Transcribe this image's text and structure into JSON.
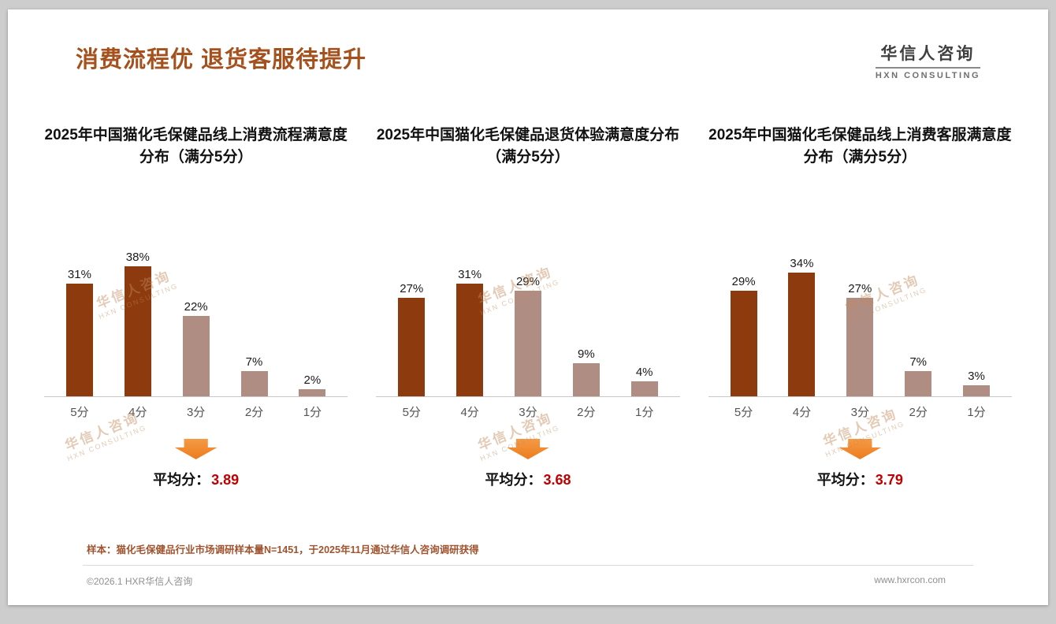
{
  "page": {
    "title": "消费流程优 退货客服待提升",
    "logo": {
      "cn": "华信人咨询",
      "en": "HXN CONSULTING"
    },
    "watermark": {
      "cn": "华信人咨询",
      "en": "HXN CONSULTING"
    },
    "footnote": "样本：猫化毛保健品行业市场调研样本量N=1451，于2025年11月通过华信人咨询调研获得",
    "copyright": "©2026.1 HXR华信人咨询",
    "website": "www.hxrcon.com"
  },
  "colors": {
    "title": "#A4511E",
    "bar_dark": "#8C3A0E",
    "bar_light": "#B08D83",
    "arrow": "#EC7C1F",
    "average_value": "#C00000"
  },
  "chart_data": [
    {
      "type": "bar",
      "title": "2025年中国猫化毛保健品线上消费流程满意度分布（满分5分）",
      "categories": [
        "5分",
        "4分",
        "3分",
        "2分",
        "1分"
      ],
      "values": [
        31,
        38,
        22,
        7,
        2
      ],
      "value_labels": [
        "31%",
        "38%",
        "22%",
        "7%",
        "2%"
      ],
      "bar_colors": [
        "#8C3A0E",
        "#8C3A0E",
        "#B08D83",
        "#B08D83",
        "#B08D83"
      ],
      "ylim": [
        0,
        40
      ],
      "grid": false,
      "legend": false,
      "average_label": "平均分：",
      "average": "3.89"
    },
    {
      "type": "bar",
      "title": "2025年中国猫化毛保健品退货体验满意度分布（满分5分）",
      "categories": [
        "5分",
        "4分",
        "3分",
        "2分",
        "1分"
      ],
      "values": [
        27,
        31,
        29,
        9,
        4
      ],
      "value_labels": [
        "27%",
        "31%",
        "29%",
        "9%",
        "4%"
      ],
      "bar_colors": [
        "#8C3A0E",
        "#8C3A0E",
        "#B08D83",
        "#B08D83",
        "#B08D83"
      ],
      "ylim": [
        0,
        40
      ],
      "grid": false,
      "legend": false,
      "average_label": "平均分：",
      "average": "3.68"
    },
    {
      "type": "bar",
      "title": "2025年中国猫化毛保健品线上消费客服满意度分布（满分5分）",
      "categories": [
        "5分",
        "4分",
        "3分",
        "2分",
        "1分"
      ],
      "values": [
        29,
        34,
        27,
        7,
        3
      ],
      "value_labels": [
        "29%",
        "34%",
        "27%",
        "7%",
        "3%"
      ],
      "bar_colors": [
        "#8C3A0E",
        "#8C3A0E",
        "#B08D83",
        "#B08D83",
        "#B08D83"
      ],
      "ylim": [
        0,
        40
      ],
      "grid": false,
      "legend": false,
      "average_label": "平均分：",
      "average": "3.79"
    }
  ]
}
